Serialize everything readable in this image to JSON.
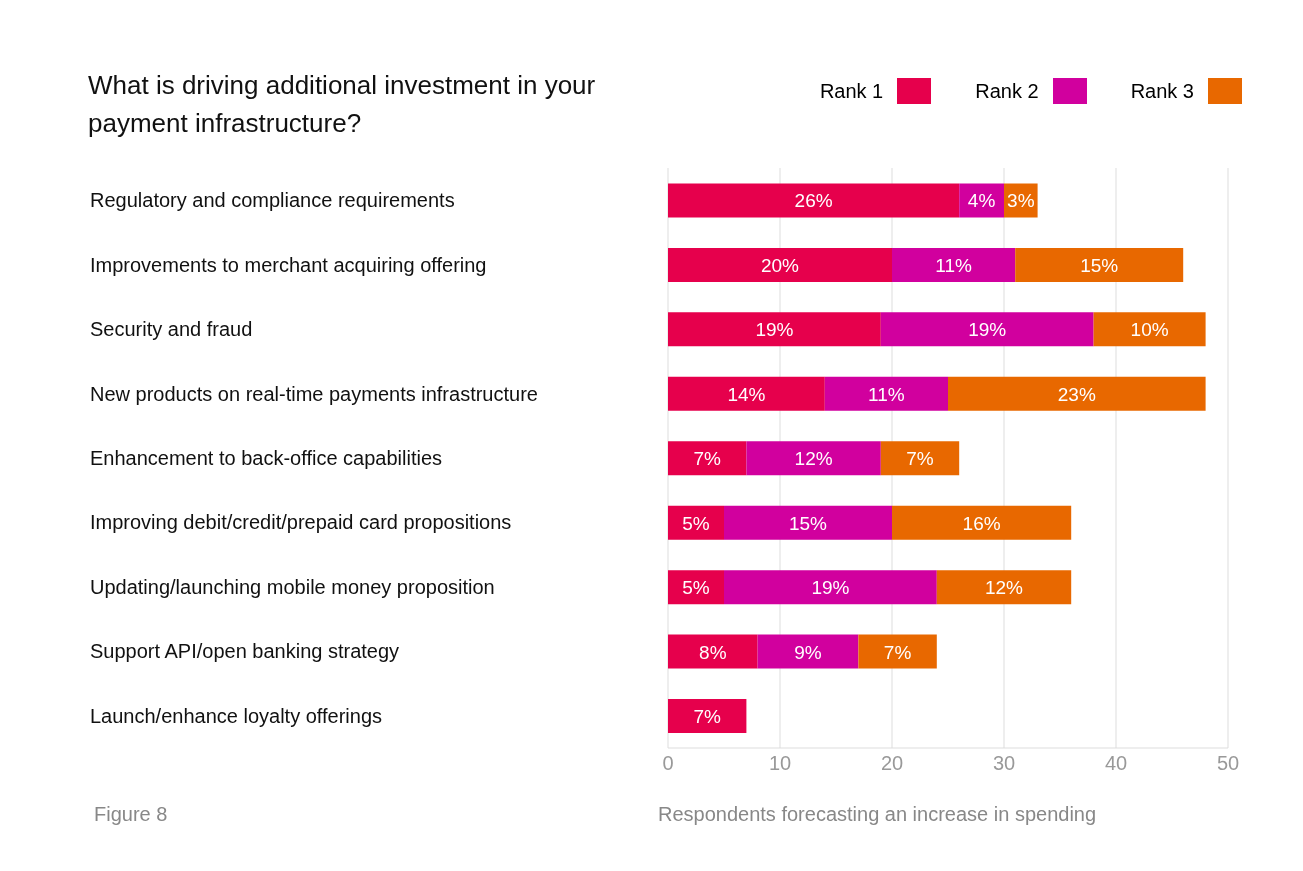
{
  "chart_data": {
    "type": "bar",
    "orientation": "horizontal",
    "stacked": true,
    "title": "What is driving additional investment in your payment infrastructure?",
    "xlabel": "Respondents forecasting an increase in spending",
    "annotations": [
      "Figure 8"
    ],
    "categories": [
      "Regulatory and compliance requirements",
      "Improvements to merchant acquiring offering",
      "Security and fraud",
      "New products on real-time payments infrastructure",
      "Enhancement to back-office capabilities",
      "Improving debit/credit/prepaid card propositions",
      "Updating/launching mobile money proposition",
      "Support API/open banking strategy",
      "Launch/enhance loyalty offerings"
    ],
    "series": [
      {
        "name": "Rank 1",
        "color": "#e6004c",
        "values": [
          26,
          20,
          19,
          14,
          7,
          5,
          5,
          8,
          7
        ],
        "value_labels": [
          "26%",
          "20%",
          "19%",
          "14%",
          "7%",
          "5%",
          "5%",
          "8%",
          "7%"
        ]
      },
      {
        "name": "Rank 2",
        "color": "#d1009e",
        "values": [
          4,
          11,
          19,
          11,
          12,
          15,
          19,
          9,
          null
        ],
        "value_labels": [
          "4%",
          "11%",
          "19%",
          "11%",
          "12%",
          "15%",
          "19%",
          "9%",
          null
        ]
      },
      {
        "name": "Rank 3",
        "color": "#e86800",
        "values": [
          3,
          15,
          10,
          23,
          7,
          16,
          12,
          7,
          null
        ],
        "value_labels": [
          "3%",
          "15%",
          "10%",
          "23%",
          "7%",
          "16%",
          "12%",
          "7%",
          null
        ]
      }
    ],
    "xlim": [
      0,
      50
    ],
    "xticks": [
      0,
      10,
      20,
      30,
      40,
      50
    ],
    "grid": "x",
    "legend": "top right"
  }
}
